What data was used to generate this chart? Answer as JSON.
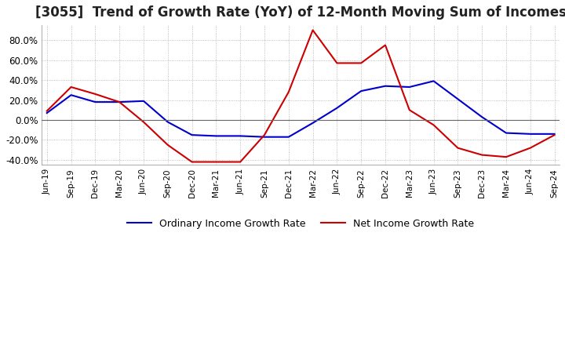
{
  "title": "[3055]  Trend of Growth Rate (YoY) of 12-Month Moving Sum of Incomes",
  "title_fontsize": 12,
  "ylim": [
    -45,
    95
  ],
  "yticks": [
    -40,
    -20,
    0,
    20,
    40,
    60,
    80
  ],
  "background_color": "#ffffff",
  "grid_color": "#aaaaaa",
  "x_labels": [
    "Jun-19",
    "Sep-19",
    "Dec-19",
    "Mar-20",
    "Jun-20",
    "Sep-20",
    "Dec-20",
    "Mar-21",
    "Jun-21",
    "Sep-21",
    "Dec-21",
    "Mar-22",
    "Jun-22",
    "Sep-22",
    "Dec-22",
    "Mar-23",
    "Jun-23",
    "Sep-23",
    "Dec-23",
    "Mar-24",
    "Jun-24",
    "Sep-24"
  ],
  "ordinary_income": [
    7.0,
    25.0,
    18.0,
    18.0,
    19.0,
    -2.0,
    -15.0,
    -16.0,
    -16.0,
    -17.0,
    -17.0,
    -3.0,
    12.0,
    29.0,
    34.0,
    33.0,
    39.0,
    21.0,
    3.0,
    -13.0,
    -14.0,
    -14.0
  ],
  "net_income": [
    9.0,
    33.0,
    26.0,
    18.0,
    -2.0,
    -25.0,
    -42.0,
    -42.0,
    -42.0,
    -15.0,
    28.0,
    90.0,
    57.0,
    57.0,
    75.0,
    10.0,
    -5.0,
    -28.0,
    -35.0,
    -37.0,
    -28.0,
    -15.0
  ],
  "ordinary_color": "#0000cc",
  "net_color": "#cc0000",
  "line_width": 1.5,
  "legend_ordinary": "Ordinary Income Growth Rate",
  "legend_net": "Net Income Growth Rate"
}
